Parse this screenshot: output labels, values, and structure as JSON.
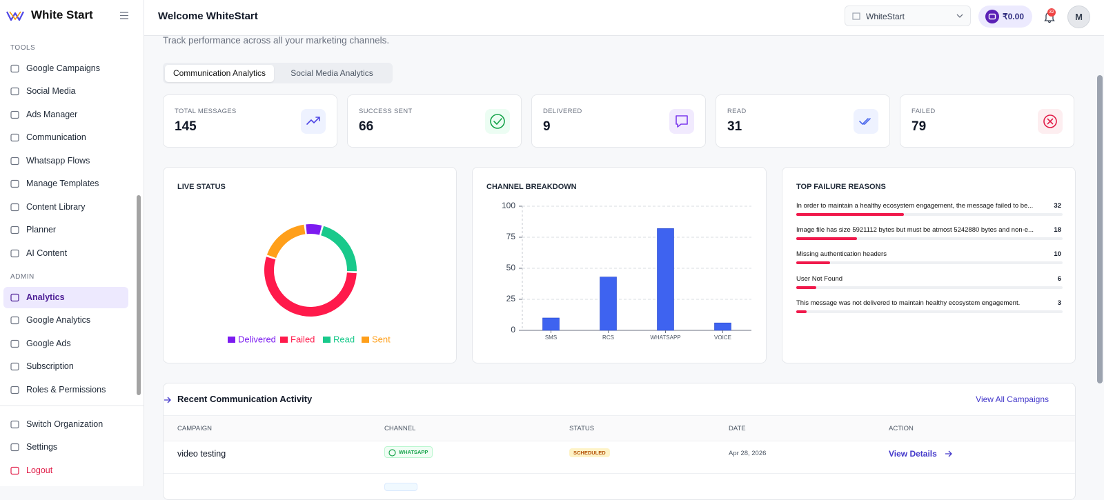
{
  "sidebar": {
    "brand": "White Start",
    "sections": [
      {
        "label": "TOOLS",
        "items": [
          "Google Campaigns",
          "Social Media",
          "Ads Manager",
          "Communication",
          "Whatsapp Flows",
          "Manage Templates",
          "Content Library",
          "Planner",
          "AI Content"
        ]
      },
      {
        "label": "ADMIN",
        "items": [
          "Analytics",
          "Google Analytics",
          "Google Ads",
          "Subscription",
          "Roles & Permissions"
        ]
      }
    ],
    "active": {
      "section": 1,
      "item": 0
    },
    "footer": [
      "Switch Organization",
      "Settings",
      "Logout"
    ]
  },
  "header": {
    "title": "Welcome WhiteStart",
    "organization": "WhiteStart",
    "balance": "₹0.00",
    "notifications": 32,
    "avatar": "M"
  },
  "subtitle": "Track performance across all your marketing channels.",
  "tabs": {
    "items": [
      "Communication Analytics",
      "Social Media Analytics"
    ],
    "active": 0
  },
  "stats": [
    {
      "label": "TOTAL MESSAGES",
      "value": 145,
      "color": "#4f46e5",
      "background": "#eef2ff"
    },
    {
      "label": "SUCCESS SENT",
      "value": 66,
      "color": "#16a34a",
      "background": "#ecfdf3"
    },
    {
      "label": "DELIVERED",
      "value": 9,
      "color": "#7c3aed",
      "background": "#f1eafe"
    },
    {
      "label": "READ",
      "value": 31,
      "color": "#4f6bed",
      "background": "#eef2ff"
    },
    {
      "label": "FAILED",
      "value": 79,
      "color": "#e11d48",
      "background": "#fdeef0"
    }
  ],
  "chart_data": [
    {
      "type": "pie",
      "title": "LIVE STATUS",
      "donut": true,
      "categories": [
        "Delivered",
        "Failed",
        "Read",
        "Sent"
      ],
      "values": [
        9,
        79,
        31,
        26
      ],
      "colors": [
        "#7c1bf0",
        "#ff1a4b",
        "#19c98b",
        "#ff9f1a"
      ]
    },
    {
      "type": "bar",
      "title": "CHANNEL BREAKDOWN",
      "categories": [
        "SMS",
        "RCS",
        "WHATSAPP",
        "VOICE"
      ],
      "values": [
        10,
        43,
        82,
        6
      ],
      "color": "#3e63f0",
      "ylim": [
        0,
        100
      ],
      "yticks": [
        0,
        25,
        50,
        75,
        100
      ],
      "grid": true
    }
  ],
  "failures": {
    "title": "TOP FAILURE REASONS",
    "items": [
      {
        "reason": "In order to maintain a healthy ecosystem engagement, the message failed to be...",
        "count": 32
      },
      {
        "reason": "Image file has size 5921112 bytes but must be atmost 5242880 bytes and non-e...",
        "count": 18
      },
      {
        "reason": "Missing authentication headers",
        "count": 10
      },
      {
        "reason": "User Not Found",
        "count": 6
      },
      {
        "reason": "This message was not delivered to maintain healthy ecosystem engagement.",
        "count": 3
      }
    ]
  },
  "activity": {
    "title": "Recent Communication Activity",
    "link": "View All Campaigns",
    "columns": [
      "CAMPAIGN",
      "CHANNEL",
      "STATUS",
      "DATE",
      "ACTION"
    ],
    "rows": [
      [
        "video testing",
        "WHATSAPP",
        "SCHEDULED",
        "Apr 28, 2026",
        "View Details"
      ]
    ]
  }
}
